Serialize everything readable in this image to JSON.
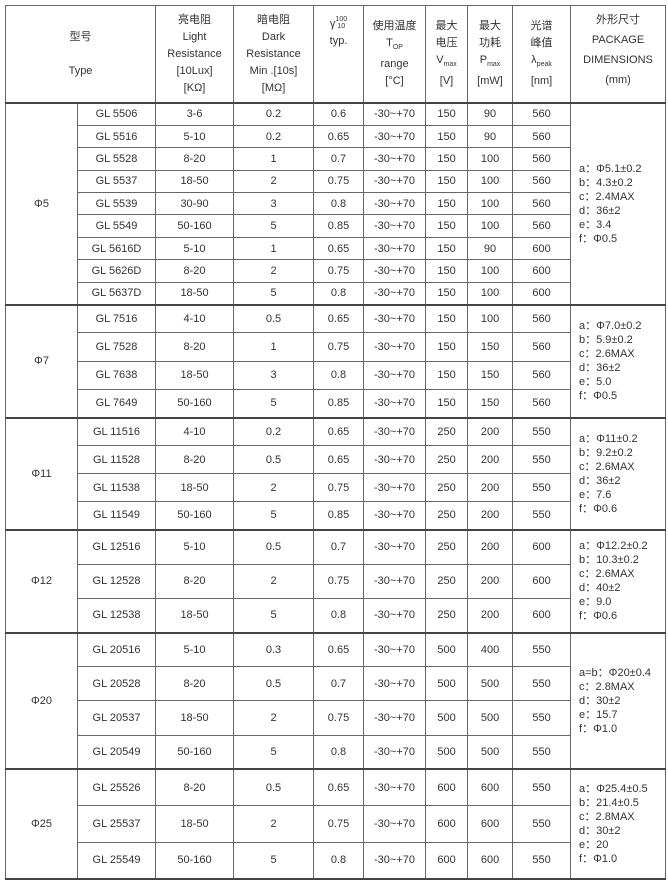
{
  "header": {
    "type_cn": "型号",
    "type_en": "Type",
    "light": [
      "亮电阻",
      "Light",
      "Resistance",
      "[10Lux]",
      "[KΩ]"
    ],
    "dark": [
      "暗电阻",
      "Dark",
      "Resistance",
      "Min .[10s]",
      "[MΩ]"
    ],
    "gamma": {
      "symbol": "γ",
      "sup": "100",
      "sub": "10",
      "typ": "typ."
    },
    "temp": {
      "cn": "使用温度",
      "t": "T",
      "tsub": "OP",
      "range": "range",
      "unit": "[°C]"
    },
    "vmax": {
      "cn1": "最大",
      "cn2": "电压",
      "v": "V",
      "sub": "max",
      "unit": "[V]"
    },
    "pmax": {
      "cn1": "最大",
      "cn2": "功耗",
      "p": "P",
      "sub": "max",
      "unit": "[mW]"
    },
    "peak": {
      "cn1": "光谱",
      "cn2": "峰值",
      "l": "λ",
      "sub": "peak",
      "unit": "[nm]"
    },
    "pkg": [
      "外形尺寸",
      "PACKAGE",
      "DIMENSIONS",
      "(mm)"
    ]
  },
  "groups": [
    {
      "size": "Φ5",
      "dims": [
        "a：Φ5.1±0.2",
        "b：4.3±0.2",
        "c：2.4MAX",
        "d：36±2",
        "e：3.4",
        "f：Φ0.5"
      ],
      "rows": [
        [
          "GL 5506",
          "3-6",
          "0.2",
          "0.6",
          "-30~+70",
          "150",
          "90",
          "560"
        ],
        [
          "GL 5516",
          "5-10",
          "0.2",
          "0.65",
          "-30~+70",
          "150",
          "90",
          "560"
        ],
        [
          "GL 5528",
          "8-20",
          "1",
          "0.7",
          "-30~+70",
          "150",
          "100",
          "560"
        ],
        [
          "GL 5537",
          "18-50",
          "2",
          "0.75",
          "-30~+70",
          "150",
          "100",
          "560"
        ],
        [
          "GL 5539",
          "30-90",
          "3",
          "0.8",
          "-30~+70",
          "150",
          "100",
          "560"
        ],
        [
          "GL 5549",
          "50-160",
          "5",
          "0.85",
          "-30~+70",
          "150",
          "100",
          "560"
        ],
        [
          "GL 5616D",
          "5-10",
          "1",
          "0.65",
          "-30~+70",
          "150",
          "90",
          "600"
        ],
        [
          "GL 5626D",
          "8-20",
          "2",
          "0.75",
          "-30~+70",
          "150",
          "100",
          "600"
        ],
        [
          "GL 5637D",
          "18-50",
          "5",
          "0.8",
          "-30~+70",
          "150",
          "100",
          "600"
        ]
      ]
    },
    {
      "size": "Φ7",
      "dims": [
        "a：Φ7.0±0.2",
        "b：5.9±0.2",
        "c：2.6MAX",
        "d：36±2",
        "e：5.0",
        "f：Φ0.5"
      ],
      "rows": [
        [
          "GL 7516",
          "4-10",
          "0.5",
          "0.65",
          "-30~+70",
          "150",
          "100",
          "560"
        ],
        [
          "GL 7528",
          "8-20",
          "1",
          "0.75",
          "-30~+70",
          "150",
          "150",
          "560"
        ],
        [
          "GL 7638",
          "18-50",
          "3",
          "0.8",
          "-30~+70",
          "150",
          "150",
          "560"
        ],
        [
          "GL 7649",
          "50-160",
          "5",
          "0.85",
          "-30~+70",
          "150",
          "150",
          "560"
        ]
      ]
    },
    {
      "size": "Φ11",
      "dims": [
        "a：Φ11±0.2",
        "b：9.2±0.2",
        "c：2.6MAX",
        "d：36±2",
        "e：7.6",
        "f：Φ0.6"
      ],
      "rows": [
        [
          "GL 11516",
          "4-10",
          "0.2",
          "0.65",
          "-30~+70",
          "250",
          "200",
          "550"
        ],
        [
          "GL 11528",
          "8-20",
          "0.5",
          "0.65",
          "-30~+70",
          "250",
          "200",
          "550"
        ],
        [
          "GL 11538",
          "18-50",
          "2",
          "0.75",
          "-30~+70",
          "250",
          "200",
          "550"
        ],
        [
          "GL 11549",
          "50-160",
          "5",
          "0.85",
          "-30~+70",
          "250",
          "200",
          "550"
        ]
      ]
    },
    {
      "size": "Φ12",
      "dims": [
        "a：Φ12.2±0.2",
        "b：10.3±0.2",
        "c：2.6MAX",
        "d：40±2",
        "e：9.0",
        "f：Φ0.6"
      ],
      "rows": [
        [
          "GL 12516",
          "5-10",
          "0.5",
          "0.7",
          "-30~+70",
          "250",
          "200",
          "600"
        ],
        [
          "GL 12528",
          "8-20",
          "2",
          "0.75",
          "-30~+70",
          "250",
          "200",
          "600"
        ],
        [
          "GL 12538",
          "18-50",
          "5",
          "0.8",
          "-30~+70",
          "250",
          "200",
          "600"
        ]
      ]
    },
    {
      "size": "Φ20",
      "dims": [
        "a=b：Φ20±0.4",
        "c：2.8MAX",
        "d：30±2",
        "e：15.7",
        "f：Φ1.0"
      ],
      "rows": [
        [
          "GL 20516",
          "5-10",
          "0.3",
          "0.65",
          "-30~+70",
          "500",
          "400",
          "550"
        ],
        [
          "GL 20528",
          "8-20",
          "0.5",
          "0.7",
          "-30~+70",
          "500",
          "500",
          "550"
        ],
        [
          "GL 20537",
          "18-50",
          "2",
          "0.75",
          "-30~+70",
          "500",
          "500",
          "550"
        ],
        [
          "GL 20549",
          "50-160",
          "5",
          "0.8",
          "-30~+70",
          "500",
          "500",
          "550"
        ]
      ]
    },
    {
      "size": "Φ25",
      "dims": [
        "a：Φ25.4±0.5",
        "b：21.4±0.5",
        "c：2.8MAX",
        "d：30±2",
        "e：20",
        "f：Φ1.0"
      ],
      "rows": [
        [
          "GL 25526",
          "8-20",
          "0.5",
          "0.65",
          "-30~+70",
          "600",
          "600",
          "550"
        ],
        [
          "GL 25537",
          "18-50",
          "2",
          "0.75",
          "-30~+70",
          "600",
          "600",
          "550"
        ],
        [
          "GL 25549",
          "50-160",
          "5",
          "0.8",
          "-30~+70",
          "600",
          "600",
          "550"
        ]
      ]
    }
  ]
}
